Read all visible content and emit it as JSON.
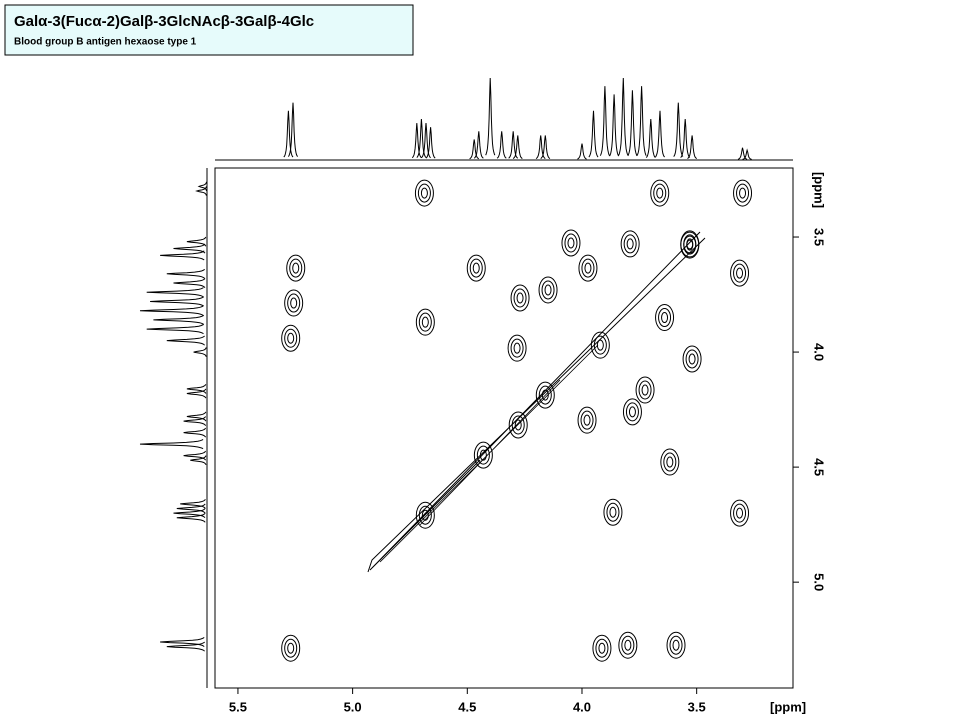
{
  "chart_data": {
    "type": "nmr2d",
    "title": "Galα-3(Fucα-2)Galβ-3GlcNAcβ-3Galβ-4Glc",
    "subtitle": "Blood group B antigen hexaose type 1",
    "xlabel": "[ppm]",
    "ylabel": "[ppm]",
    "xlim": [
      5.6,
      3.08
    ],
    "ylim": [
      3.2,
      5.46
    ],
    "xticks": [
      5.5,
      {
        "value": 5,
        "label": "5.0"
      },
      4.5,
      {
        "value": 4,
        "label": "4.0"
      },
      3.5
    ],
    "yticks": [
      3.5,
      {
        "value": 4,
        "label": "4.0"
      },
      4.5,
      {
        "value": 5,
        "label": "5.0"
      }
    ],
    "color": "#000000",
    "projection": {
      "ppm": [
        5.28,
        5.26,
        4.72,
        4.7,
        4.68,
        4.66,
        4.47,
        4.45,
        4.4,
        4.35,
        4.3,
        4.28,
        4.18,
        4.16,
        4.0,
        3.95,
        3.9,
        3.86,
        3.82,
        3.78,
        3.74,
        3.7,
        3.66,
        3.58,
        3.55,
        3.52,
        3.3,
        3.28
      ],
      "height": [
        0.6,
        0.7,
        0.45,
        0.5,
        0.45,
        0.4,
        0.25,
        0.35,
        1.0,
        0.35,
        0.35,
        0.3,
        0.3,
        0.3,
        0.2,
        0.6,
        0.9,
        0.8,
        1.0,
        0.85,
        0.9,
        0.5,
        0.6,
        0.7,
        0.5,
        0.3,
        0.15,
        0.12
      ]
    },
    "crosspeaks": {
      "x": [
        4.687,
        3.661,
        3.3,
        4.048,
        3.79,
        3.53,
        5.248,
        4.461,
        3.974,
        3.313,
        5.257,
        4.27,
        4.148,
        4.683,
        5.27,
        4.283,
        3.64,
        3.52,
        3.725,
        3.78,
        3.978,
        3.617,
        3.865,
        3.313,
        3.913,
        3.8,
        3.59,
        5.27,
        4.683,
        4.43,
        4.278,
        4.16,
        3.92,
        3.53
      ],
      "y": [
        3.309,
        3.309,
        3.309,
        3.526,
        3.53,
        3.53,
        3.635,
        3.635,
        3.635,
        3.657,
        3.787,
        3.765,
        3.73,
        3.87,
        3.94,
        3.983,
        3.85,
        4.03,
        4.165,
        4.26,
        4.296,
        4.478,
        4.696,
        4.7,
        5.287,
        5.274,
        5.274,
        5.287,
        4.709,
        4.448,
        4.317,
        4.187,
        3.97,
        3.535
      ]
    }
  }
}
